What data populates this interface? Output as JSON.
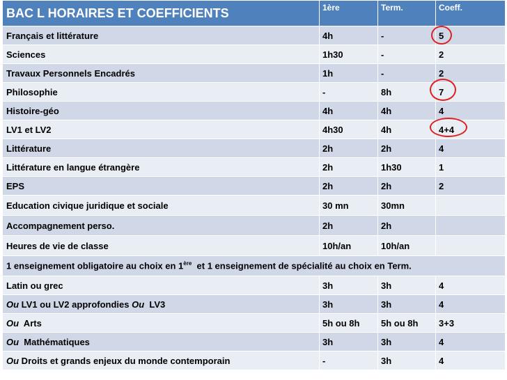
{
  "table": {
    "title": "BAC L HORAIRES ET COEFFICIENTS",
    "headers": [
      "1ère",
      "Term.",
      "Coeff."
    ],
    "rows": [
      {
        "subject": "Français et littérature",
        "first": "4h",
        "term": "-",
        "coeff": "5"
      },
      {
        "subject": "Sciences",
        "first": "1h30",
        "term": "-",
        "coeff": "2"
      },
      {
        "subject": "Travaux Personnels Encadrés",
        "first": "1h",
        "term": "-",
        "coeff": "2"
      },
      {
        "subject": "Philosophie",
        "first": "-",
        "term": "8h",
        "coeff": "7"
      },
      {
        "subject": "Histoire-géo",
        "first": "4h",
        "term": "4h",
        "coeff": "4"
      },
      {
        "subject": "LV1 et LV2",
        "first": "4h30",
        "term": "4h",
        "coeff": "4+4"
      },
      {
        "subject": "Littérature",
        "first": "2h",
        "term": "2h",
        "coeff": "4"
      },
      {
        "subject": "Littérature en langue étrangère",
        "first": "2h",
        "term": "1h30",
        "coeff": "1"
      },
      {
        "subject": "EPS",
        "first": "2h",
        "term": "2h",
        "coeff": "2"
      },
      {
        "subject": "Education civique juridique et sociale",
        "first": "30 mn",
        "term": "30mn",
        "coeff": ""
      },
      {
        "subject": "Accompagnement perso.",
        "first": "2h",
        "term": "2h",
        "coeff": ""
      },
      {
        "subject": "Heures de vie de classe",
        "first": "10h/an",
        "term": "10h/an",
        "coeff": ""
      }
    ],
    "choice_note": {
      "part1": "1 enseignement obligatoire au choix en 1",
      "sup": "ère",
      "part2": "  et 1 enseignement de spécialité au choix en Term."
    },
    "options": [
      {
        "prefix": "",
        "subject": "Latin ou grec",
        "first": "3h",
        "term": "3h",
        "coeff": "4"
      },
      {
        "prefix": "Ou",
        "subject": " LV1 ou LV2 approfondies ",
        "mid_prefix": "Ou",
        "tail": "  LV3",
        "first": "3h",
        "term": "3h",
        "coeff": "4"
      },
      {
        "prefix": "Ou",
        "subject": "  Arts",
        "first": "5h ou 8h",
        "term": "5h ou 8h",
        "coeff": "3+3"
      },
      {
        "prefix": "Ou",
        "subject": "  Mathématiques",
        "first": "3h",
        "term": "3h",
        "coeff": "4"
      },
      {
        "prefix": "Ou",
        "subject": " Droits et grands enjeux du monde contemporain",
        "first": "-",
        "term": "3h",
        "coeff": "4"
      }
    ],
    "highlight_color": "#e02020",
    "header_color": "#4f81bd"
  }
}
